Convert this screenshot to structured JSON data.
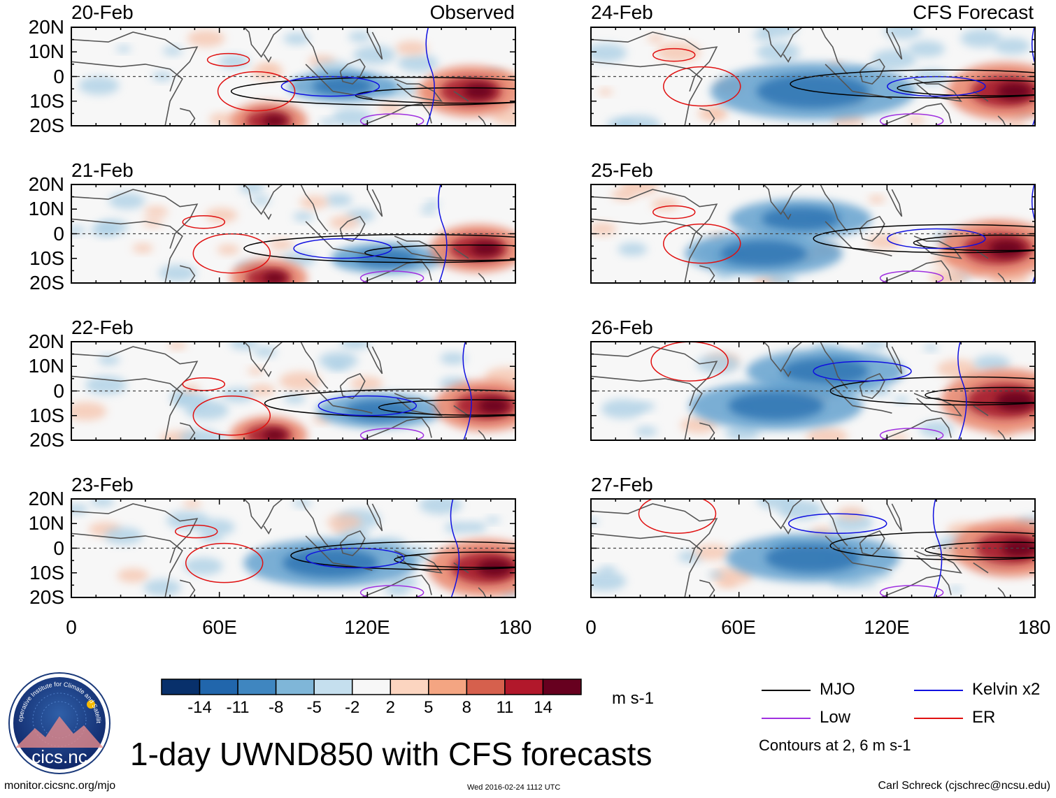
{
  "chart_data": {
    "type": "heatmap",
    "title": "1-day UWND850 with CFS forecasts",
    "variable": "850 hPa zonal wind anomaly",
    "units": "m s-1",
    "column_labels": {
      "left": "Observed",
      "right": "CFS Forecast"
    },
    "x_ticks": [
      "0",
      "60E",
      "120E",
      "180"
    ],
    "x_range_deg": [
      0,
      180
    ],
    "y_ticks": [
      "20N",
      "10N",
      "0",
      "10S",
      "20S"
    ],
    "y_range_deg": [
      -20,
      20
    ],
    "panels": [
      {
        "date": "20-Feb",
        "column": "left",
        "row": 0,
        "kind": "observed",
        "mjo": {
          "lon": 108,
          "lat": -6,
          "len": 72
        },
        "hot": [
          [
            162,
            -6,
            16
          ],
          [
            80,
            -18,
            12
          ]
        ],
        "cold": [
          [
            110,
            -4,
            14
          ]
        ],
        "kelvin": [
          [
            105,
            -4
          ]
        ],
        "er": [
          [
            75,
            -6
          ]
        ]
      },
      {
        "date": "21-Feb",
        "column": "left",
        "row": 1,
        "kind": "observed",
        "mjo": {
          "lon": 112,
          "lat": -6,
          "len": 70
        },
        "hot": [
          [
            165,
            -6,
            15
          ],
          [
            80,
            -18,
            12
          ]
        ],
        "cold": [
          [
            128,
            -10,
            14
          ]
        ],
        "kelvin": [
          [
            110,
            -6
          ]
        ],
        "er": [
          [
            65,
            -8
          ]
        ]
      },
      {
        "date": "22-Feb",
        "column": "left",
        "row": 2,
        "kind": "observed",
        "mjo": {
          "lon": 118,
          "lat": -5,
          "len": 66
        },
        "hot": [
          [
            168,
            -6,
            16
          ],
          [
            80,
            -18,
            12
          ]
        ],
        "cold": [
          [
            125,
            -8,
            16
          ]
        ],
        "kelvin": [
          [
            120,
            -6
          ]
        ],
        "er": [
          [
            65,
            -10
          ]
        ]
      },
      {
        "date": "23-Feb",
        "column": "left",
        "row": 3,
        "kind": "observed",
        "mjo": {
          "lon": 125,
          "lat": -3,
          "len": 60
        },
        "hot": [
          [
            168,
            -8,
            18
          ]
        ],
        "cold": [
          [
            105,
            -6,
            22
          ]
        ],
        "kelvin": [
          [
            115,
            -4
          ]
        ],
        "er": [
          [
            62,
            -6
          ]
        ]
      },
      {
        "date": "24-Feb",
        "column": "right",
        "row": 0,
        "kind": "forecast",
        "mjo": {
          "lon": 118,
          "lat": -3,
          "len": 62
        },
        "hot": [
          [
            168,
            -6,
            18
          ]
        ],
        "cold": [
          [
            90,
            -6,
            26
          ]
        ],
        "kelvin": [
          [
            140,
            -4
          ]
        ],
        "er": [
          [
            45,
            -4
          ]
        ]
      },
      {
        "date": "25-Feb",
        "column": "right",
        "row": 1,
        "kind": "forecast",
        "mjo": {
          "lon": 125,
          "lat": -2,
          "len": 58
        },
        "hot": [
          [
            165,
            -6,
            18
          ]
        ],
        "cold": [
          [
            85,
            6,
            18
          ],
          [
            70,
            -8,
            20
          ]
        ],
        "kelvin": [
          [
            140,
            -2
          ]
        ],
        "er": [
          [
            45,
            -4
          ]
        ]
      },
      {
        "date": "26-Feb",
        "column": "right",
        "row": 2,
        "kind": "forecast",
        "mjo": {
          "lon": 130,
          "lat": 0,
          "len": 55
        },
        "hot": [
          [
            168,
            -4,
            20
          ]
        ],
        "cold": [
          [
            95,
            8,
            20
          ],
          [
            75,
            -6,
            22
          ]
        ],
        "kelvin": [
          [
            110,
            8
          ]
        ],
        "er": [
          [
            40,
            12
          ]
        ]
      },
      {
        "date": "27-Feb",
        "column": "right",
        "row": 3,
        "kind": "forecast",
        "mjo": {
          "lon": 130,
          "lat": 1,
          "len": 55
        },
        "hot": [
          [
            170,
            0,
            18
          ]
        ],
        "cold": [
          [
            90,
            -4,
            22
          ]
        ],
        "kelvin": [
          [
            100,
            10
          ]
        ],
        "er": [
          [
            35,
            14
          ]
        ]
      }
    ],
    "colorbar": {
      "labels": [
        "-14",
        "-11",
        "-8",
        "-5",
        "-2",
        "2",
        "5",
        "8",
        "11",
        "14"
      ],
      "colors": [
        "#08306b",
        "#2166ac",
        "#3f86c0",
        "#7fb6d8",
        "#c5dfee",
        "#f7f7f7",
        "#fcd5c0",
        "#f4a582",
        "#d6604d",
        "#b2182b",
        "#67001f"
      ]
    },
    "contour_legend": [
      {
        "label": "MJO",
        "color": "#000000"
      },
      {
        "label": "Kelvin x2",
        "color": "#1010e0"
      },
      {
        "label": "Low",
        "color": "#a030e0"
      },
      {
        "label": "ER",
        "color": "#e01010"
      }
    ],
    "contour_note": "Contours at 2, 6 m s-1"
  },
  "footer": {
    "url": "monitor.cicsnc.org/mjo",
    "timestamp": "Wed 2016-02-24 1112 UTC",
    "author": "Carl Schreck (cjschrec@ncsu.edu)",
    "logo_text": "cics.nc",
    "logo_ring_text": "Cooperative Institute for Climate and Satellites"
  }
}
